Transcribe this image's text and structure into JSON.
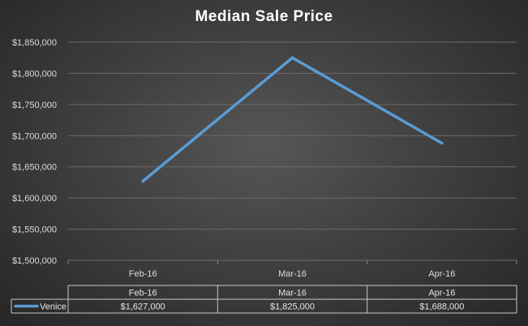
{
  "chart_data": {
    "type": "line",
    "title": "Median Sale Price",
    "categories": [
      "Feb-16",
      "Mar-16",
      "Apr-16"
    ],
    "series": [
      {
        "name": "Venice",
        "values": [
          1627000,
          1825000,
          1688000
        ],
        "color": "#5b9bd5"
      }
    ],
    "ylim": [
      1500000,
      1850000
    ],
    "yticks": [
      {
        "value": 1500000,
        "label": "$1,500,000"
      },
      {
        "value": 1550000,
        "label": "$1,550,000"
      },
      {
        "value": 1600000,
        "label": "$1,600,000"
      },
      {
        "value": 1650000,
        "label": "$1,650,000"
      },
      {
        "value": 1700000,
        "label": "$1,700,000"
      },
      {
        "value": 1750000,
        "label": "$1,750,000"
      },
      {
        "value": 1800000,
        "label": "$1,800,000"
      },
      {
        "value": 1850000,
        "label": "$1,850,000"
      }
    ],
    "grid": true,
    "legend": "data-table",
    "data_table": {
      "header": [
        "Feb-16",
        "Mar-16",
        "Apr-16"
      ],
      "rows": [
        {
          "label": "Venice",
          "cells": [
            "$1,627,000",
            "$1,825,000",
            "$1,688,000"
          ]
        }
      ]
    }
  }
}
